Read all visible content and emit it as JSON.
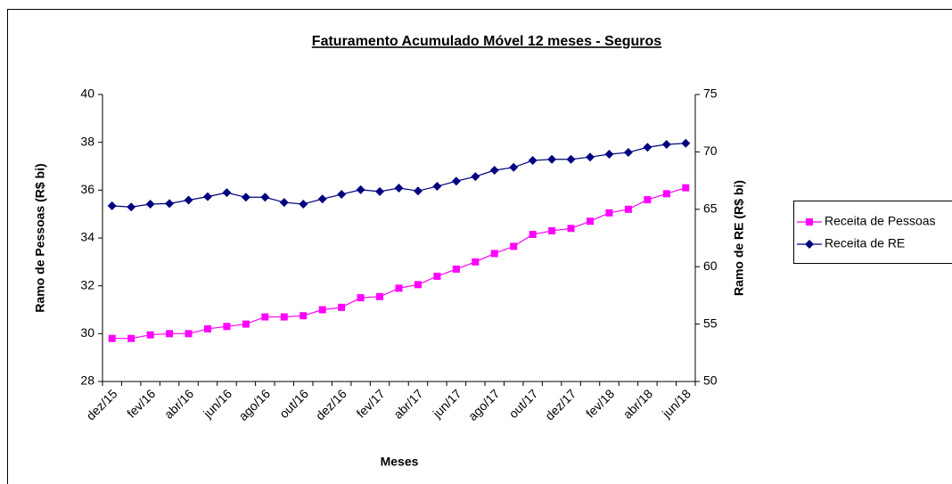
{
  "chart_data": {
    "type": "line",
    "title": "Faturamento Acumulado Móvel 12 meses - Seguros",
    "xlabel": "Meses",
    "ylabel": "Ramo de Pessoas (R$ bi)",
    "y2label": "Ramo de RE (R$ bi)",
    "categories": [
      "dez/15",
      null,
      "fev/16",
      null,
      "abr/16",
      null,
      "jun/16",
      null,
      "ago/16",
      null,
      "out/16",
      null,
      "dez/16",
      null,
      "fev/17",
      null,
      "abr/17",
      null,
      "jun/17",
      null,
      "ago/17",
      null,
      "out/17",
      null,
      "dez/17",
      null,
      "fev/18",
      null,
      "abr/18",
      null,
      "jun/18"
    ],
    "ylim": [
      28,
      40
    ],
    "yticks": [
      28,
      30,
      32,
      34,
      36,
      38,
      40
    ],
    "y2lim": [
      50,
      75
    ],
    "y2ticks": [
      50,
      55,
      60,
      65,
      70,
      75
    ],
    "legend": "right",
    "series": [
      {
        "name": "Receita de Pessoas",
        "color": "#ff00ff",
        "marker": "square",
        "values": [
          29.8,
          29.8,
          29.95,
          30.0,
          30.0,
          30.2,
          30.3,
          30.4,
          30.7,
          30.7,
          30.75,
          31.0,
          31.1,
          31.5,
          31.55,
          31.9,
          32.05,
          32.4,
          32.7,
          33.0,
          33.35,
          33.65,
          34.15,
          34.3,
          34.4,
          34.7,
          35.05,
          35.2,
          35.6,
          35.85,
          36.1
        ]
      },
      {
        "name": "Receita de RE",
        "color": "#000080",
        "marker": "diamond",
        "axis": "y2",
        "values": [
          65.3,
          65.2,
          65.45,
          65.5,
          65.8,
          66.1,
          66.45,
          66.05,
          66.05,
          65.6,
          65.45,
          65.9,
          66.3,
          66.7,
          66.55,
          66.85,
          66.6,
          67.0,
          67.45,
          67.85,
          68.4,
          68.65,
          69.25,
          69.35,
          69.35,
          69.55,
          69.8,
          69.95,
          70.4,
          70.65,
          70.75
        ]
      }
    ]
  }
}
